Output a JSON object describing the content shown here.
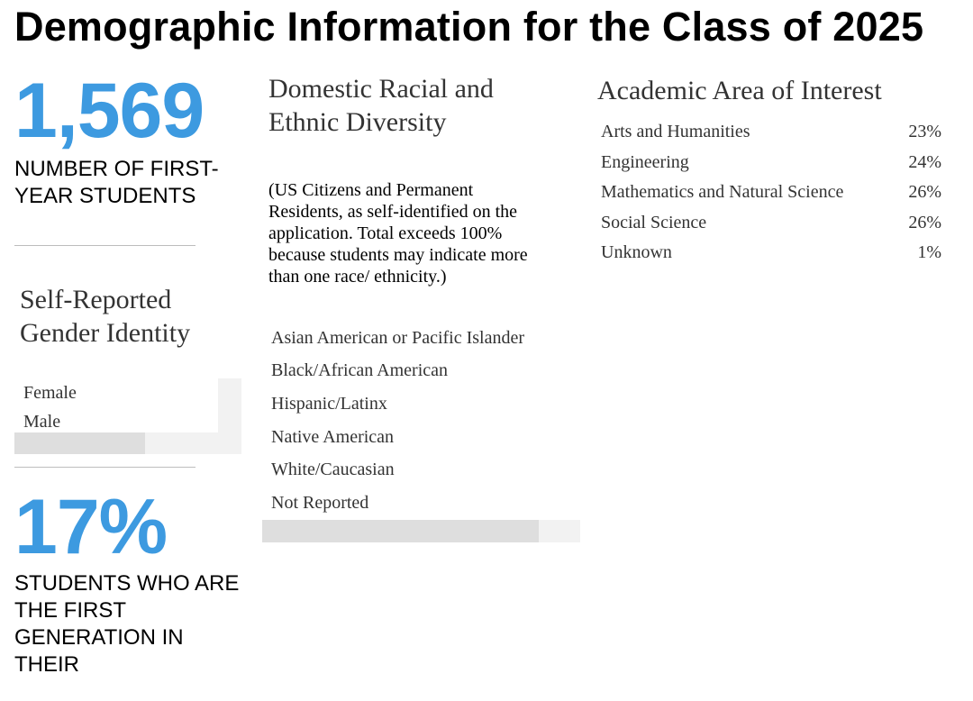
{
  "page": {
    "title": "Demographic Information for the Class of 2025"
  },
  "first_year": {
    "value": "1,569",
    "caption": "NUMBER OF FIRST-YEAR STUDENTS"
  },
  "gender": {
    "heading": "Self-Reported Gender Identity",
    "rows": [
      "Female",
      "Male"
    ]
  },
  "first_generation": {
    "value": "17%",
    "caption": "STUDENTS WHO ARE THE FIRST GENERATION IN THEIR"
  },
  "race": {
    "heading": "Domestic Racial and Ethnic Diversity",
    "note": "(US Citizens and Permanent Residents, as self-identified on the application. Total exceeds 100% because students may indicate more than one race/ ethnicity.)",
    "rows": [
      "Asian American or Pacific Islander",
      "Black/African American",
      "Hispanic/Latinx",
      "Native American",
      "White/Caucasian",
      "Not Reported"
    ]
  },
  "academic": {
    "heading": "Academic Area of Interest",
    "rows": [
      {
        "label": "Arts and Humanities",
        "value": "23%"
      },
      {
        "label": "Engineering",
        "value": "24%"
      },
      {
        "label": "Mathematics and Natural Science",
        "value": "26%"
      },
      {
        "label": "Social Science",
        "value": "26%"
      },
      {
        "label": "Unknown",
        "value": "1%"
      }
    ]
  },
  "colors": {
    "accent_blue": "#3d9ae0",
    "divider": "#bdbdbd",
    "scroll_track": "#f2f2f2",
    "scroll_thumb": "#dedede"
  }
}
